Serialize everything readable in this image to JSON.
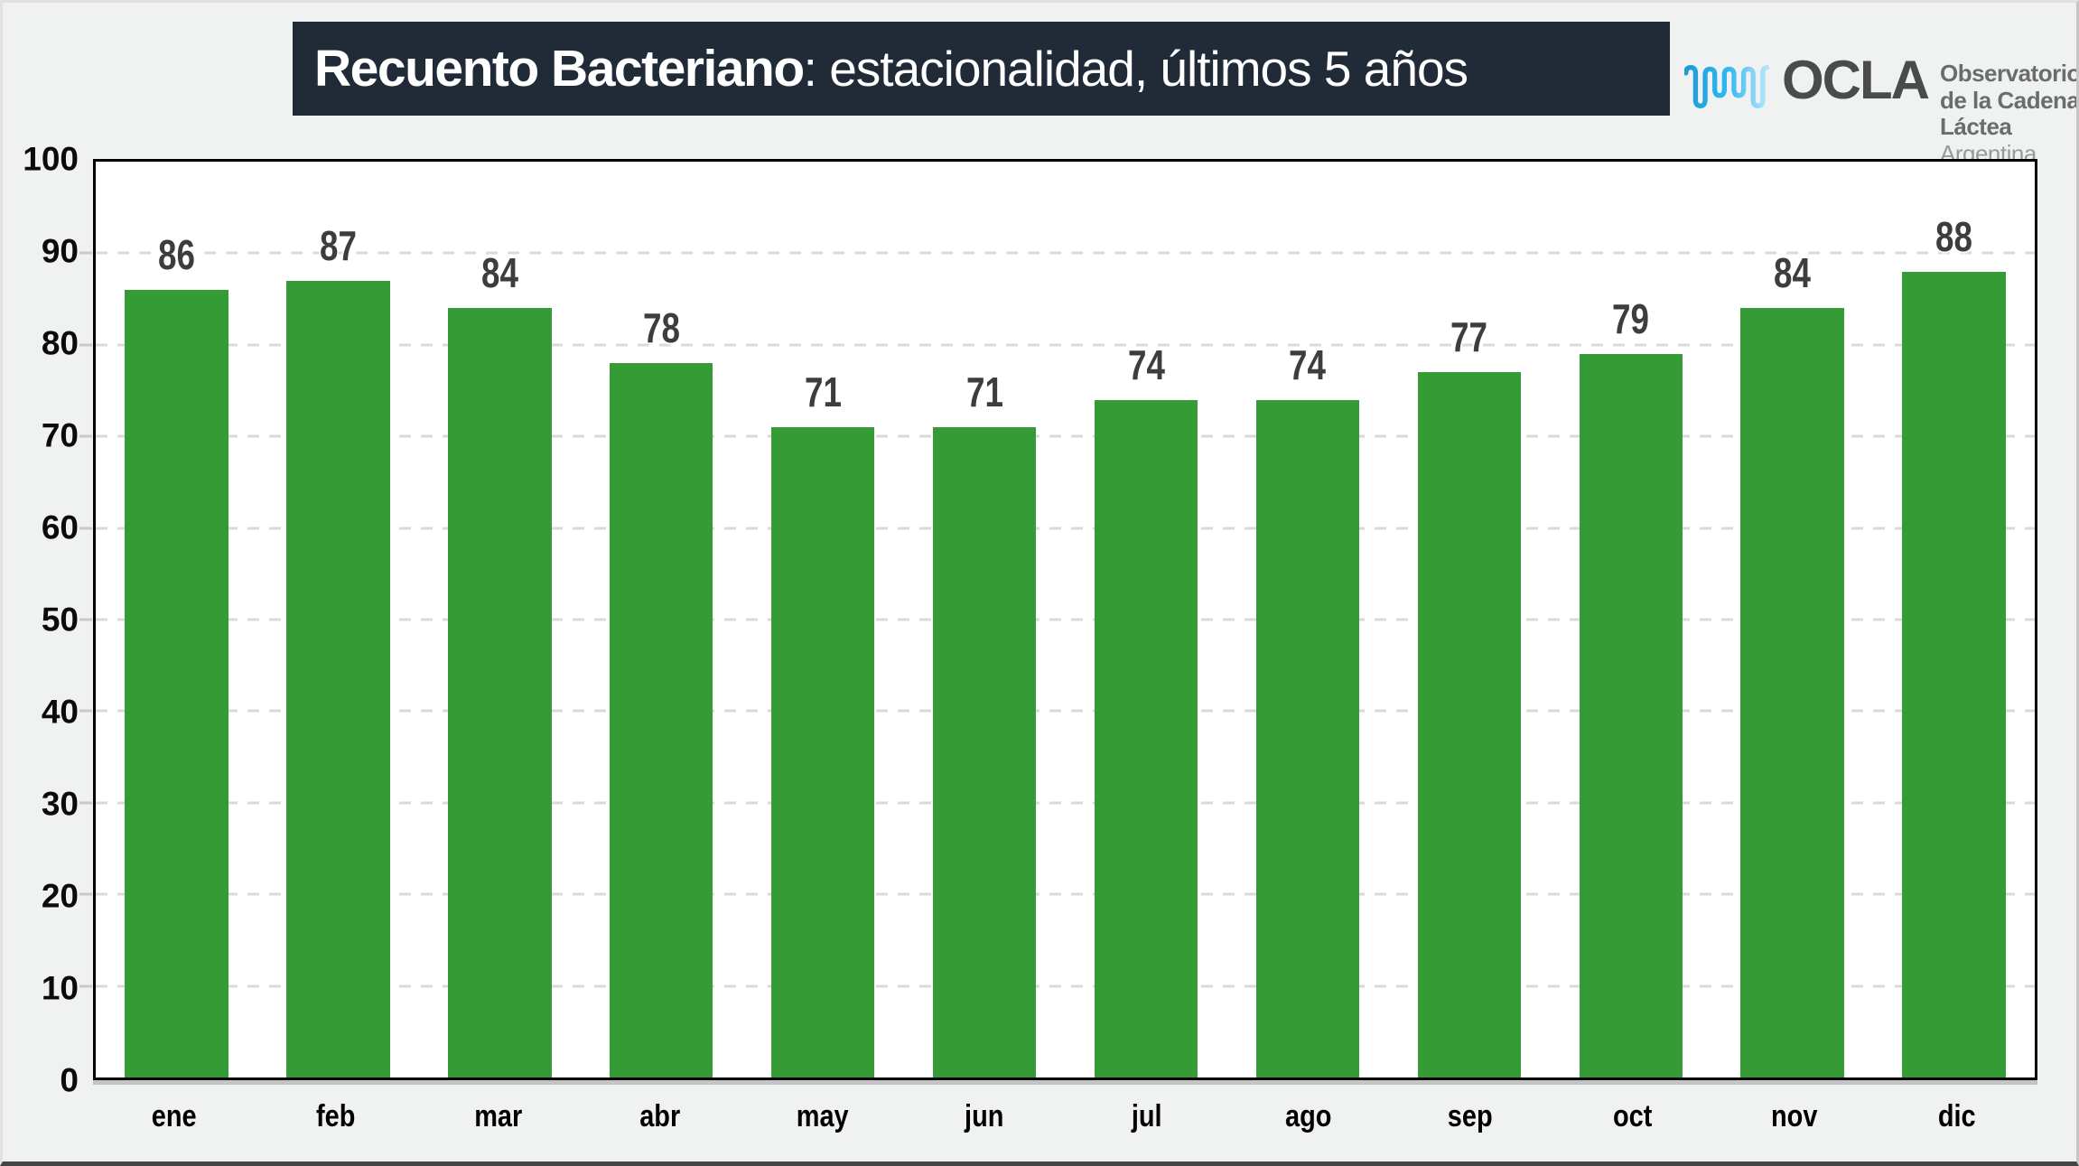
{
  "title": {
    "main": "Recuento Bacteriano",
    "sub": ": estacionalidad, últimos 5 años"
  },
  "logo": {
    "wordmark": "OCLA",
    "org_line1": "Observatorio",
    "org_line2": "de la Cadena Láctea",
    "org_line3": "Argentina"
  },
  "colors": {
    "bar": "#349b35",
    "title_bg": "#212b38",
    "grid": "#d9d9d9",
    "data_label": "#3d3d3d",
    "plot_border": "#000000",
    "page_bg": "#f0f1f1",
    "logo_blue_dark": "#1e9ad6",
    "logo_blue": "#2fb6f2",
    "logo_blue_light": "#b5e6fb",
    "logo_gray": "#4a4b4d"
  },
  "chart_data": {
    "type": "bar",
    "title": "Recuento Bacteriano: estacionalidad, últimos 5 años",
    "categories": [
      "ene",
      "feb",
      "mar",
      "abr",
      "may",
      "jun",
      "jul",
      "ago",
      "sep",
      "oct",
      "nov",
      "dic"
    ],
    "values": [
      86,
      87,
      84,
      78,
      71,
      71,
      74,
      74,
      77,
      79,
      84,
      88
    ],
    "xlabel": "",
    "ylabel": "",
    "ylim": [
      0,
      100
    ],
    "ytick_step": 10,
    "yticks": [
      0,
      10,
      20,
      30,
      40,
      50,
      60,
      70,
      80,
      90,
      100
    ],
    "grid": "horizontal-dashed",
    "legend": "none",
    "data_labels": "above-bars"
  }
}
